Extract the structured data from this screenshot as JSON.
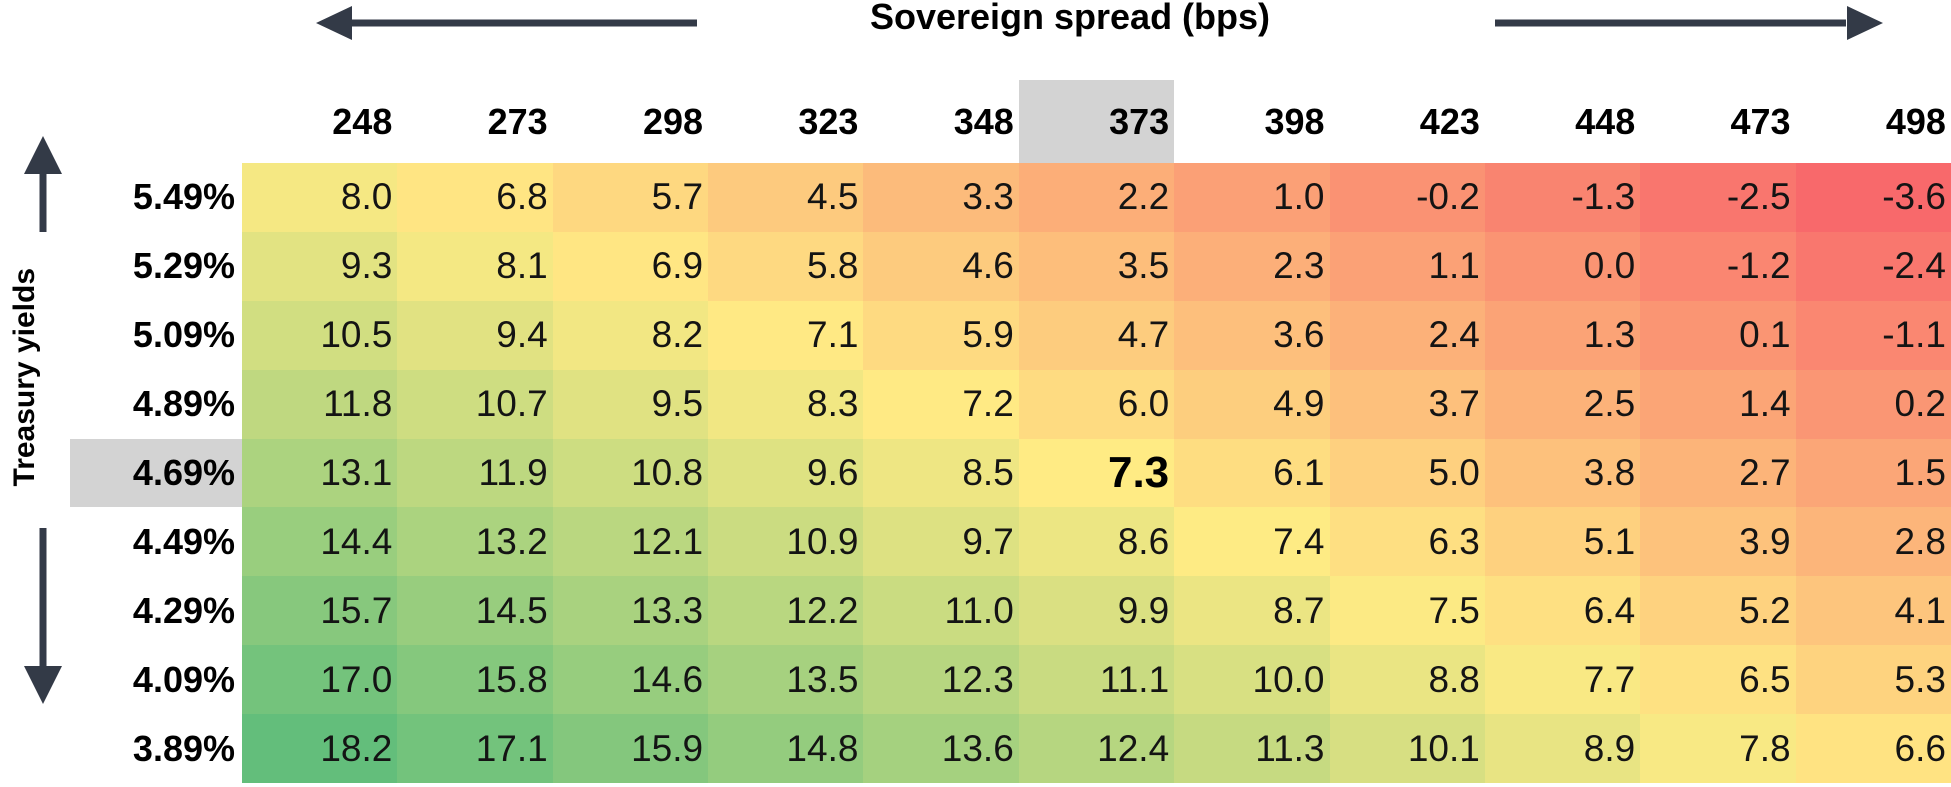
{
  "title": "Sovereign spread (bps)",
  "y_axis_label": "Treasury yields",
  "colors": {
    "arrow": "#333a47",
    "highlight_bg": "#d3d3d3",
    "scale_min": "#F8696B",
    "scale_mid": "#FFEB84",
    "scale_max": "#63BE7B"
  },
  "chart_data": {
    "type": "heatmap",
    "title": "Sovereign spread (bps)",
    "xlabel": "Sovereign spread (bps)",
    "ylabel": "Treasury yields",
    "columns": [
      "248",
      "273",
      "298",
      "323",
      "348",
      "373",
      "398",
      "423",
      "448",
      "473",
      "498"
    ],
    "rows": [
      "5.49%",
      "5.29%",
      "5.09%",
      "4.89%",
      "4.69%",
      "4.49%",
      "4.29%",
      "4.09%",
      "3.89%"
    ],
    "values": [
      [
        8.0,
        6.8,
        5.7,
        4.5,
        3.3,
        2.2,
        1.0,
        -0.2,
        -1.3,
        -2.5,
        -3.6
      ],
      [
        9.3,
        8.1,
        6.9,
        5.8,
        4.6,
        3.5,
        2.3,
        1.1,
        0.0,
        -1.2,
        -2.4
      ],
      [
        10.5,
        9.4,
        8.2,
        7.1,
        5.9,
        4.7,
        3.6,
        2.4,
        1.3,
        0.1,
        -1.1
      ],
      [
        11.8,
        10.7,
        9.5,
        8.3,
        7.2,
        6.0,
        4.9,
        3.7,
        2.5,
        1.4,
        0.2
      ],
      [
        13.1,
        11.9,
        10.8,
        9.6,
        8.5,
        7.3,
        6.1,
        5.0,
        3.8,
        2.7,
        1.5
      ],
      [
        14.4,
        13.2,
        12.1,
        10.9,
        9.7,
        8.6,
        7.4,
        6.3,
        5.1,
        3.9,
        2.8
      ],
      [
        15.7,
        14.5,
        13.3,
        12.2,
        11.0,
        9.9,
        8.7,
        7.5,
        6.4,
        5.2,
        4.1
      ],
      [
        17.0,
        15.8,
        14.6,
        13.5,
        12.3,
        11.1,
        10.0,
        8.8,
        7.7,
        6.5,
        5.3
      ],
      [
        18.2,
        17.1,
        15.9,
        14.8,
        13.6,
        12.4,
        11.3,
        10.1,
        8.9,
        7.8,
        6.6
      ]
    ],
    "highlighted_column": "373",
    "highlighted_row": "4.69%",
    "highlighted_cell_value": 7.3,
    "value_format": "one_decimal",
    "colorscale": {
      "min_value": -3.6,
      "mid_value": 7.3,
      "max_value": 18.2,
      "min_color": "#F8696B",
      "mid_color": "#FFEB84",
      "max_color": "#63BE7B"
    },
    "legend": "none",
    "grid_lines": "off"
  }
}
